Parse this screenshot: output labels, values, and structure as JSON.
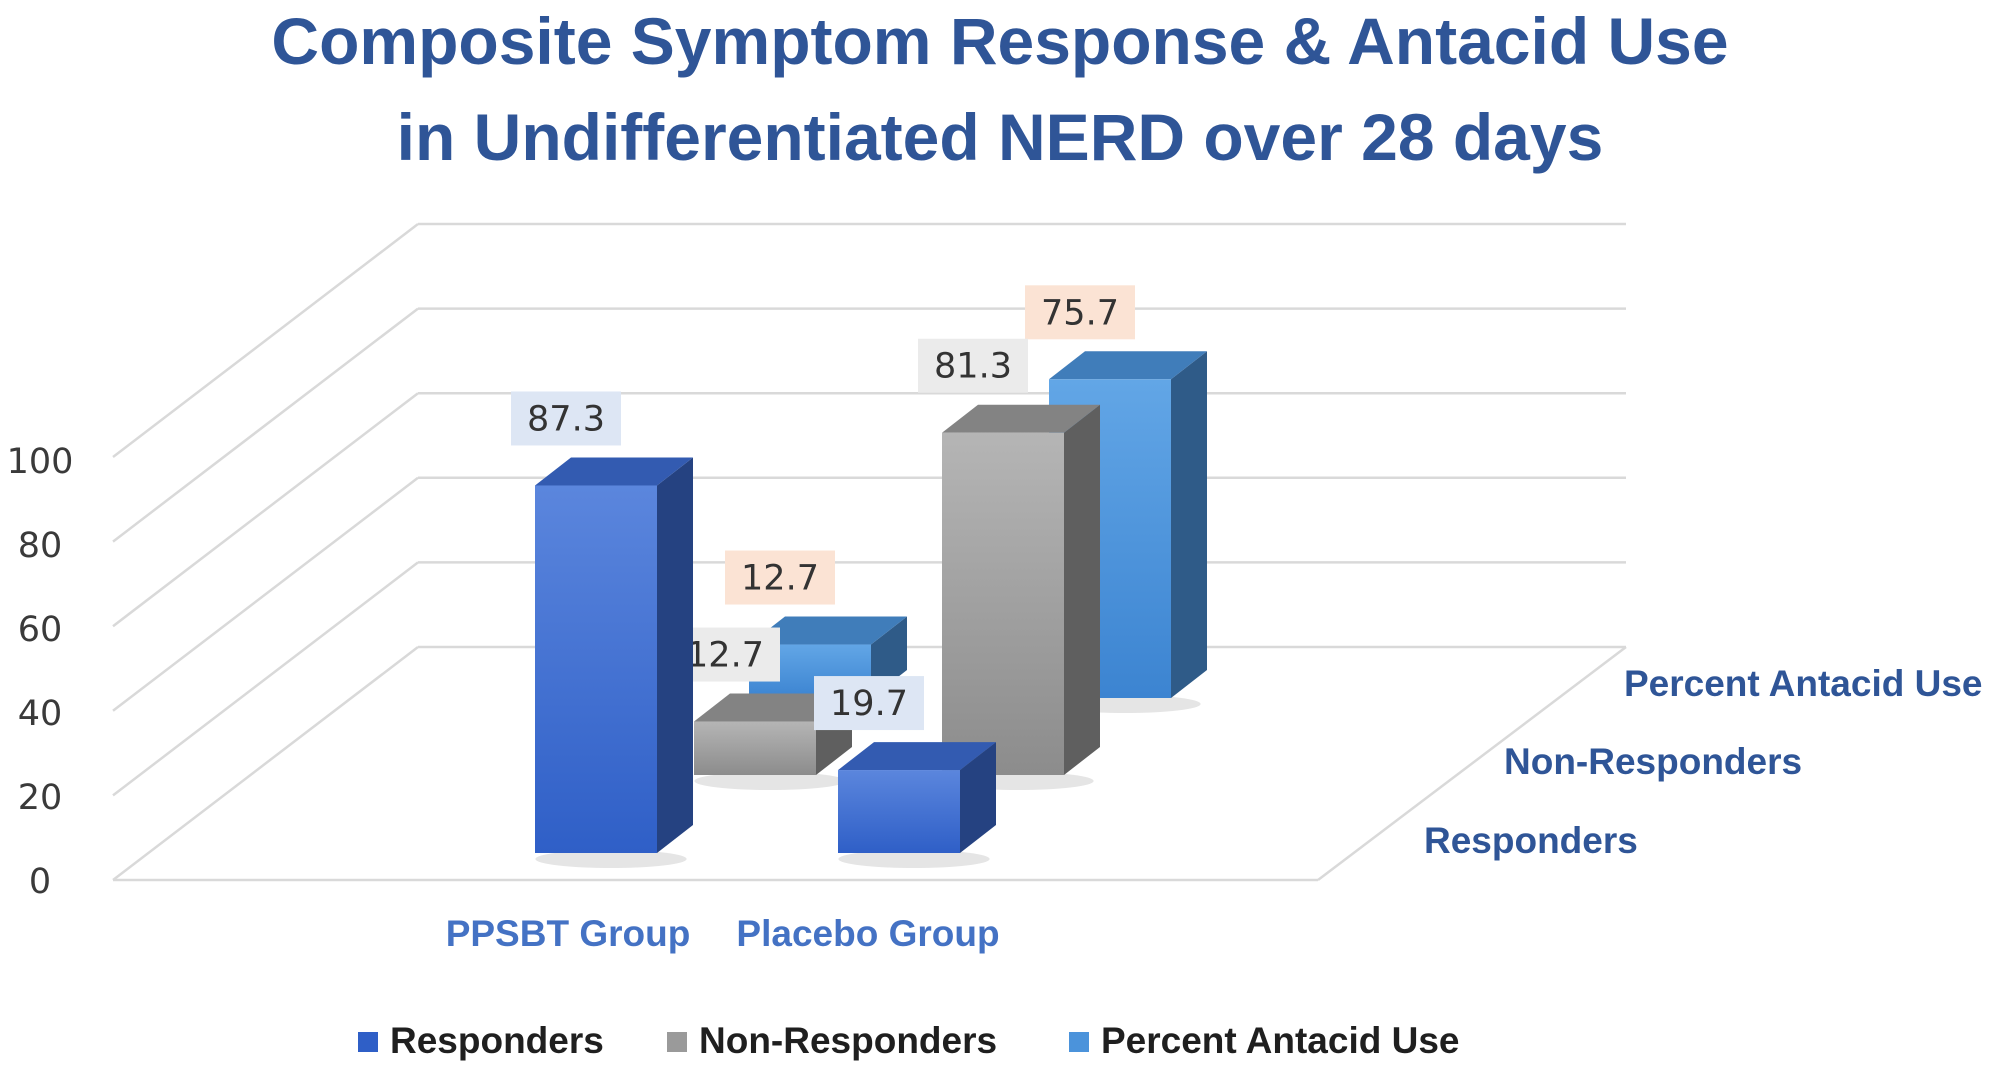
{
  "chart_data": {
    "type": "bar",
    "variant": "3d-column",
    "title_line1": "Composite Symptom Response & Antacid Use",
    "title_line2": "in Undifferentiated NERD over 28 days",
    "categories": [
      "PPSBT Group",
      "Placebo Group"
    ],
    "series": [
      {
        "name": "Responders",
        "values": [
          87.3,
          19.7
        ],
        "color": "#3c6bd0",
        "label_bg": "#dde6f4"
      },
      {
        "name": "Non-Responders",
        "values": [
          12.7,
          81.3
        ],
        "color": "#9a9a9a",
        "label_bg": "#ebebeb"
      },
      {
        "name": "Percent Antacid Use",
        "values": [
          12.7,
          75.7
        ],
        "color": "#4b93db",
        "label_bg": "#fbe3d4"
      }
    ],
    "y_ticks": [
      "0",
      "20",
      "40",
      "60",
      "80",
      "100"
    ],
    "ylim": [
      0,
      100
    ],
    "grid": true,
    "legend_position": "bottom"
  }
}
